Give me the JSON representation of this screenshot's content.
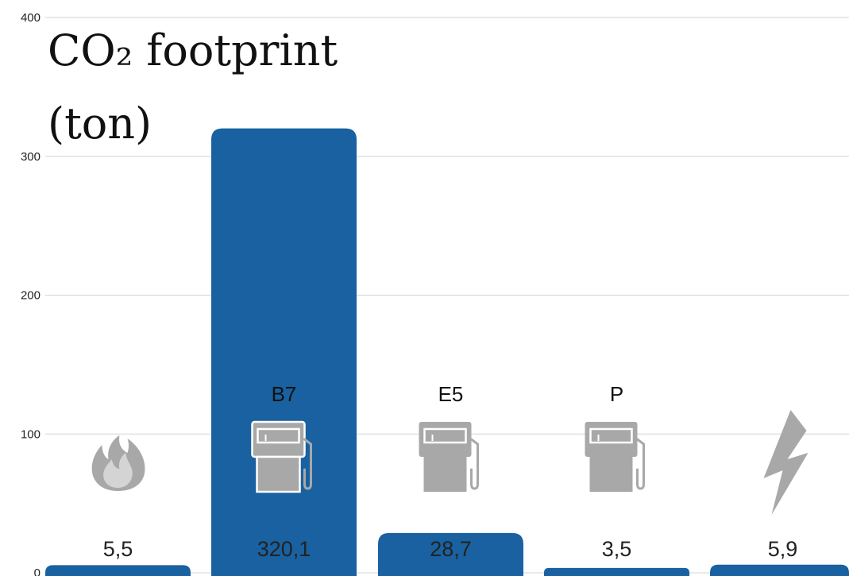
{
  "chart_data": {
    "type": "bar",
    "title": "CO₂ footprint",
    "title_line2": "(ton)",
    "categories": [
      "",
      "B7",
      "E5",
      "P",
      ""
    ],
    "icons": [
      "flame-icon",
      "fuel-pump-icon",
      "fuel-pump-icon",
      "fuel-pump-icon",
      "lightning-bolt-icon"
    ],
    "values": [
      5.5,
      320.1,
      28.7,
      3.5,
      5.9
    ],
    "value_labels": [
      "5,5",
      "320,1",
      "28,7",
      "3,5",
      "5,9"
    ],
    "y_ticks": [
      "0",
      "100",
      "200",
      "300",
      "400"
    ],
    "y_tick_values": [
      0,
      100,
      200,
      300,
      400
    ],
    "ylim": [
      0,
      400
    ],
    "grid": true,
    "legend": "none",
    "colors": {
      "bar": "#1961a0",
      "icon": "#a8a8a8",
      "grid": "#d3d3d3"
    }
  }
}
